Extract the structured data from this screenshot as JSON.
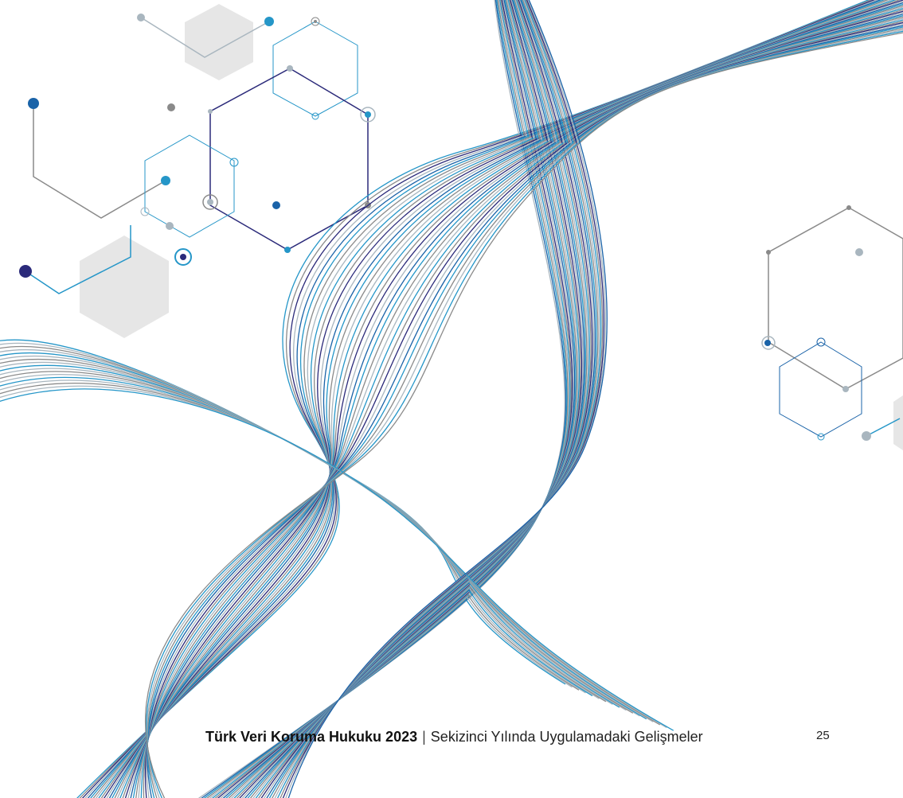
{
  "footer": {
    "title": "Türk Veri Koruma Hukuku 2023",
    "separator": "|",
    "subtitle": "Sekizinci Yılında Uygulamadaki Gelişmeler",
    "page_number": "25"
  },
  "palette": {
    "navy": "#2b2a7a",
    "blue": "#1a63a8",
    "cyan": "#2596c8",
    "gray": "#8a8a8a",
    "light_gray": "#a9b6bf",
    "hex_fill": "#e6e6e6"
  }
}
